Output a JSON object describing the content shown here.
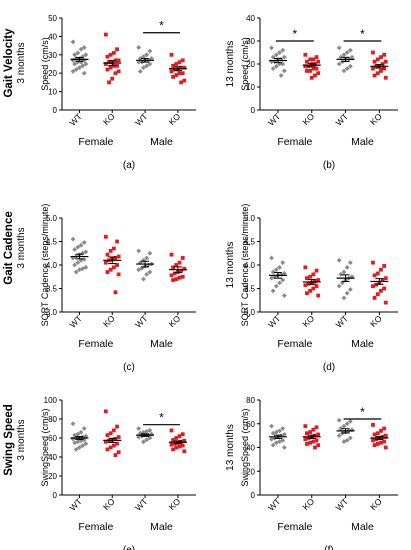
{
  "figure": {
    "row_labels": [
      {
        "bold": "Gait Velocity",
        "regular": "3 months"
      },
      {
        "bold": "Gait Cadence",
        "regular": "3 months"
      },
      {
        "bold": "Swing Speed",
        "regular": "3 months"
      }
    ]
  },
  "chart_data": [
    {
      "type": "scatter",
      "panel_label": "(a)",
      "side_title": "",
      "ylabel": "Speed (cm/s)",
      "ylim": [
        0,
        50
      ],
      "yticks": [
        0,
        10,
        20,
        30,
        40,
        50
      ],
      "ytick_labels": [
        "0",
        "10",
        "20",
        "30",
        "40",
        "50"
      ],
      "categories": [
        "WT",
        "KO",
        "WT",
        "KO"
      ],
      "groups": [
        "Female",
        "Male"
      ],
      "colors": {
        "WT": "#8a8a8a",
        "KO": "#e8191d"
      },
      "series": [
        {
          "category": "WT",
          "group": "Female",
          "mean": 27.5,
          "sem": 1.0,
          "values": [
            37,
            34,
            33,
            31,
            30,
            30,
            29,
            28,
            28,
            27,
            27,
            26,
            26,
            25,
            25,
            24,
            23,
            22,
            21,
            20
          ]
        },
        {
          "category": "KO",
          "group": "Female",
          "mean": 25.5,
          "sem": 1.3,
          "values": [
            41,
            33,
            31,
            30,
            29,
            27,
            27,
            26,
            26,
            25,
            24,
            24,
            23,
            22,
            21,
            20,
            17,
            15
          ]
        },
        {
          "category": "WT",
          "group": "Male",
          "mean": 27.0,
          "sem": 1.0,
          "values": [
            34,
            32,
            30,
            29,
            28,
            28,
            27,
            27,
            26,
            26,
            25,
            24,
            23,
            21
          ]
        },
        {
          "category": "KO",
          "group": "Male",
          "mean": 22.5,
          "sem": 1.0,
          "values": [
            30,
            27,
            26,
            25,
            24,
            23,
            23,
            22,
            22,
            21,
            20,
            20,
            19,
            18,
            16,
            15
          ]
        }
      ],
      "significance": [
        {
          "from": 2,
          "to": 3,
          "label": "*",
          "y": 42
        }
      ]
    },
    {
      "type": "scatter",
      "panel_label": "(b)",
      "side_title": "13 months",
      "ylabel": "Speed (cm/s)",
      "ylim": [
        0,
        40
      ],
      "yticks": [
        0,
        10,
        20,
        30,
        40
      ],
      "ytick_labels": [
        "0",
        "10",
        "20",
        "30",
        "40"
      ],
      "categories": [
        "WT",
        "KO",
        "WT",
        "KO"
      ],
      "groups": [
        "Female",
        "Male"
      ],
      "colors": {
        "WT": "#8a8a8a",
        "KO": "#e8191d"
      },
      "series": [
        {
          "category": "WT",
          "group": "Female",
          "mean": 21.5,
          "sem": 0.9,
          "values": [
            27,
            26,
            25,
            24,
            23,
            23,
            22,
            22,
            21,
            21,
            20,
            20,
            19,
            18,
            17,
            15
          ]
        },
        {
          "category": "KO",
          "group": "Female",
          "mean": 19.5,
          "sem": 0.7,
          "values": [
            24,
            23,
            22,
            22,
            21,
            21,
            20,
            20,
            19,
            19,
            18,
            18,
            17,
            17,
            16,
            15,
            14
          ]
        },
        {
          "category": "WT",
          "group": "Male",
          "mean": 22.0,
          "sem": 0.9,
          "values": [
            27,
            26,
            25,
            24,
            23,
            23,
            22,
            22,
            21,
            20,
            19,
            18,
            17
          ]
        },
        {
          "category": "KO",
          "group": "Male",
          "mean": 19.0,
          "sem": 0.8,
          "values": [
            25,
            24,
            23,
            22,
            21,
            21,
            20,
            19,
            19,
            18,
            18,
            17,
            16,
            15,
            14
          ]
        }
      ],
      "significance": [
        {
          "from": 0,
          "to": 1,
          "label": "*",
          "y": 30
        },
        {
          "from": 2,
          "to": 3,
          "label": "*",
          "y": 30
        }
      ]
    },
    {
      "type": "scatter",
      "panel_label": "(c)",
      "side_title": "",
      "ylabel": "SQRT Cadence (steps/minute)",
      "ylim": [
        3.0,
        5.0
      ],
      "yticks": [
        3.0,
        3.5,
        4.0,
        4.5,
        5.0
      ],
      "ytick_labels": [
        "3.0",
        "3.5",
        "4.0",
        "4.5",
        "5.0"
      ],
      "categories": [
        "WT",
        "KO",
        "WT",
        "KO"
      ],
      "groups": [
        "Female",
        "Male"
      ],
      "colors": {
        "WT": "#8a8a8a",
        "KO": "#e8191d"
      },
      "series": [
        {
          "category": "WT",
          "group": "Female",
          "mean": 4.18,
          "sem": 0.05,
          "values": [
            4.55,
            4.48,
            4.42,
            4.38,
            4.33,
            4.28,
            4.25,
            4.22,
            4.18,
            4.15,
            4.12,
            4.1,
            4.05,
            4.0,
            3.95,
            3.92,
            3.9,
            3.85
          ]
        },
        {
          "category": "KO",
          "group": "Female",
          "mean": 4.1,
          "sem": 0.07,
          "values": [
            4.6,
            4.5,
            4.35,
            4.3,
            4.22,
            4.18,
            4.15,
            4.12,
            4.1,
            4.05,
            4.0,
            3.95,
            3.9,
            3.85,
            3.8,
            3.42
          ]
        },
        {
          "category": "WT",
          "group": "Male",
          "mean": 4.02,
          "sem": 0.06,
          "values": [
            4.3,
            4.25,
            4.15,
            4.1,
            4.05,
            4.02,
            4.0,
            3.97,
            3.93,
            3.9,
            3.85,
            3.8,
            3.7
          ]
        },
        {
          "category": "KO",
          "group": "Male",
          "mean": 3.9,
          "sem": 0.06,
          "values": [
            4.22,
            4.15,
            4.05,
            4.0,
            3.95,
            3.92,
            3.88,
            3.85,
            3.82,
            3.78,
            3.75,
            3.73,
            3.7,
            3.68
          ]
        }
      ],
      "significance": []
    },
    {
      "type": "scatter",
      "panel_label": "(d)",
      "side_title": "13 months",
      "ylabel": "SQRT Cadence (steps/minute)",
      "ylim": [
        3.0,
        5.0
      ],
      "yticks": [
        3.0,
        3.5,
        4.0,
        4.5,
        5.0
      ],
      "ytick_labels": [
        "3.0",
        "3.5",
        "4.0",
        "4.5",
        "5.0"
      ],
      "categories": [
        "WT",
        "KO",
        "WT",
        "KO"
      ],
      "groups": [
        "Female",
        "Male"
      ],
      "colors": {
        "WT": "#8a8a8a",
        "KO": "#e8191d"
      },
      "series": [
        {
          "category": "WT",
          "group": "Female",
          "mean": 3.78,
          "sem": 0.06,
          "values": [
            4.15,
            4.05,
            3.95,
            3.9,
            3.85,
            3.82,
            3.8,
            3.78,
            3.75,
            3.72,
            3.68,
            3.62,
            3.55,
            3.45,
            3.35
          ]
        },
        {
          "category": "KO",
          "group": "Female",
          "mean": 3.64,
          "sem": 0.05,
          "values": [
            3.95,
            3.88,
            3.8,
            3.75,
            3.72,
            3.68,
            3.65,
            3.62,
            3.6,
            3.57,
            3.55,
            3.5,
            3.45,
            3.4,
            3.35
          ]
        },
        {
          "category": "WT",
          "group": "Male",
          "mean": 3.72,
          "sem": 0.07,
          "values": [
            4.1,
            4.05,
            3.95,
            3.85,
            3.8,
            3.75,
            3.72,
            3.68,
            3.62,
            3.55,
            3.48,
            3.4,
            3.3
          ]
        },
        {
          "category": "KO",
          "group": "Male",
          "mean": 3.65,
          "sem": 0.06,
          "values": [
            4.05,
            3.98,
            3.9,
            3.82,
            3.78,
            3.72,
            3.68,
            3.62,
            3.58,
            3.55,
            3.5,
            3.45,
            3.38,
            3.3,
            3.2
          ]
        }
      ],
      "significance": []
    },
    {
      "type": "scatter",
      "panel_label": "(e)",
      "side_title": "",
      "ylabel": "SwingSpeed (cm/s)",
      "ylim": [
        0,
        100
      ],
      "yticks": [
        0,
        20,
        40,
        60,
        80,
        100
      ],
      "ytick_labels": [
        "0",
        "20",
        "40",
        "60",
        "80",
        "100"
      ],
      "categories": [
        "WT",
        "KO",
        "WT",
        "KO"
      ],
      "groups": [
        "Female",
        "Male"
      ],
      "colors": {
        "WT": "#8a8a8a",
        "KO": "#e8191d"
      },
      "series": [
        {
          "category": "WT",
          "group": "Female",
          "mean": 60.0,
          "sem": 1.5,
          "values": [
            75,
            70,
            66,
            64,
            63,
            62,
            61,
            60,
            60,
            59,
            58,
            57,
            56,
            55,
            54,
            52,
            50,
            48
          ]
        },
        {
          "category": "KO",
          "group": "Female",
          "mean": 57.5,
          "sem": 2.2,
          "values": [
            88,
            72,
            68,
            65,
            63,
            61,
            59,
            58,
            57,
            56,
            54,
            52,
            50,
            48,
            45,
            42
          ]
        },
        {
          "category": "WT",
          "group": "Male",
          "mean": 63.0,
          "sem": 1.3,
          "values": [
            70,
            68,
            67,
            66,
            65,
            64,
            63,
            63,
            62,
            61,
            60,
            58,
            56
          ]
        },
        {
          "category": "KO",
          "group": "Male",
          "mean": 55.5,
          "sem": 1.5,
          "values": [
            68,
            64,
            62,
            60,
            58,
            57,
            56,
            55,
            54,
            53,
            52,
            51,
            50,
            48,
            46
          ]
        }
      ],
      "significance": [
        {
          "from": 2,
          "to": 3,
          "label": "*",
          "y": 74
        }
      ]
    },
    {
      "type": "scatter",
      "panel_label": "(f)",
      "side_title": "13 months",
      "ylabel": "SwingSpeed (cm/s)",
      "ylim": [
        0,
        80
      ],
      "yticks": [
        0,
        20,
        40,
        60,
        80
      ],
      "ytick_labels": [
        "0",
        "20",
        "40",
        "60",
        "80"
      ],
      "categories": [
        "WT",
        "KO",
        "WT",
        "KO"
      ],
      "groups": [
        "Female",
        "Male"
      ],
      "colors": {
        "WT": "#8a8a8a",
        "KO": "#e8191d"
      },
      "series": [
        {
          "category": "WT",
          "group": "Female",
          "mean": 49.0,
          "sem": 1.4,
          "values": [
            58,
            56,
            54,
            53,
            52,
            51,
            50,
            49,
            48,
            47,
            46,
            45,
            44,
            42,
            40
          ]
        },
        {
          "category": "KO",
          "group": "Female",
          "mean": 49.0,
          "sem": 1.4,
          "values": [
            58,
            57,
            55,
            53,
            52,
            51,
            50,
            49,
            48,
            47,
            46,
            45,
            44,
            43,
            42,
            40
          ]
        },
        {
          "category": "WT",
          "group": "Male",
          "mean": 54.0,
          "sem": 1.8,
          "values": [
            63,
            62,
            60,
            58,
            56,
            55,
            54,
            53,
            52,
            50,
            48,
            46,
            45
          ]
        },
        {
          "category": "KO",
          "group": "Male",
          "mean": 48.0,
          "sem": 1.3,
          "values": [
            59,
            56,
            54,
            52,
            51,
            50,
            49,
            48,
            47,
            46,
            45,
            44,
            43,
            42,
            40
          ]
        }
      ],
      "significance": [
        {
          "from": 2,
          "to": 3,
          "label": "*",
          "y": 64
        }
      ]
    }
  ]
}
